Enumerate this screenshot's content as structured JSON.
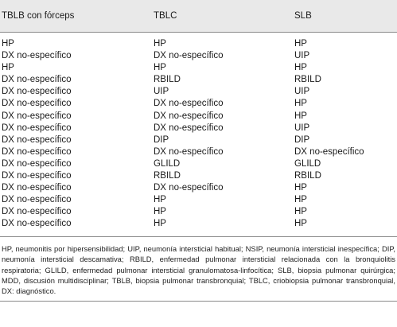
{
  "table": {
    "headers": [
      "TBLB con fórceps",
      "TBLC",
      "SLB"
    ],
    "rows": [
      [
        "HP",
        "HP",
        "HP"
      ],
      [
        "DX no-específico",
        "DX no-específico",
        "UIP"
      ],
      [
        "HP",
        "HP",
        "HP"
      ],
      [
        "DX no-específico",
        "RBILD",
        "RBILD"
      ],
      [
        "DX no-específico",
        "UIP",
        "UIP"
      ],
      [
        "DX no-específico",
        "DX no-específico",
        "HP"
      ],
      [
        "DX no-específico",
        "DX no-específico",
        "HP"
      ],
      [
        "DX no-específico",
        "DX no-específico",
        "UIP"
      ],
      [
        "DX no-específico",
        "DIP",
        "DIP"
      ],
      [
        "DX no-específico",
        "DX no-específico",
        "DX no-específico"
      ],
      [
        "DX no-específico",
        "GLILD",
        "GLILD"
      ],
      [
        "DX no-específico",
        "RBILD",
        "RBILD"
      ],
      [
        "DX no-específico",
        "DX no-específico",
        "HP"
      ],
      [
        "DX no-específico",
        "HP",
        "HP"
      ],
      [
        "DX no-específico",
        "HP",
        "HP"
      ],
      [
        "DX no-específico",
        "HP",
        "HP"
      ]
    ]
  },
  "footnote": "HP, neumonitis por hipersensibilidad; UIP, neumonía intersticial habitual; NSIP, neumonía intersticial inespecífica; DIP, neumonía intersticial descamativa; RBILD, enfermedad pulmonar intersticial relacionada con la bronquiolitis respiratoria; GLILD, enfermedad pulmonar intersticial granulomatosa-linfocítica; SLB, biopsia pulmonar quirúrgica; MDD, discusión multidisciplinar; TBLB, biopsia pulmonar transbronquial; TBLC, criobiopsia pulmonar transbronquial, DX: diagnóstico."
}
